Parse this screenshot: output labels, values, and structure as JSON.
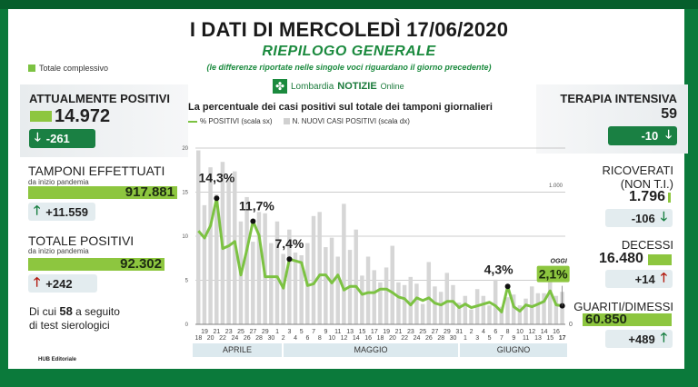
{
  "header": {
    "title": "I DATI DI MERCOLEDÌ 17/06/2020",
    "subtitle": "RIEPILOGO GENERALE",
    "note": "(le differenze riportate nelle singole voci riguardano il giorno precedente)",
    "brand": {
      "name": "Lombardia",
      "notizie": "NOTIZIE",
      "online": "Online"
    }
  },
  "legend_top": {
    "label": "Totale complessivo",
    "color": "#8dc63f"
  },
  "left": {
    "attualmente_positivi": {
      "label": "ATTUALMENTE POSITIVI",
      "value": "14.972",
      "delta": "-261",
      "delta_dir": "down"
    },
    "tamponi": {
      "label": "TAMPONI EFFETTUATI",
      "sub": "da inizio pandemia",
      "value": "917.881",
      "delta": "+11.559",
      "delta_dir": "up"
    },
    "totale_positivi": {
      "label": "TOTALE POSITIVI",
      "sub": "da inizio pandemia",
      "value": "92.302",
      "delta": "+242",
      "delta_dir": "up"
    },
    "sierologici": {
      "pre": "Di cui",
      "num": "58",
      "post": "a seguito",
      "line2": "di test sierologici"
    }
  },
  "right": {
    "terapia_intensiva": {
      "label": "TERAPIA INTENSIVA",
      "value": "59",
      "delta": "-10",
      "delta_dir": "down"
    },
    "ricoverati": {
      "label1": "RICOVERATI",
      "label2": "(NON T.I.)",
      "value": "1.796",
      "delta": "-106",
      "delta_dir": "down"
    },
    "decessi": {
      "label": "DECESSI",
      "value": "16.480",
      "delta": "+14",
      "delta_dir": "up"
    },
    "guariti": {
      "label": "GUARITI/DIMESSI",
      "value": "60.850",
      "delta": "+489",
      "delta_dir": "up"
    }
  },
  "footer": {
    "label": "HUB Editoriale"
  },
  "colors": {
    "accent_green": "#8dc63f",
    "dark_green": "#1a8043",
    "frame_green": "#0b7a3b",
    "red": "#b31b10",
    "bar_gray": "#d6d6d6"
  },
  "chart_data": {
    "type": "bar+line",
    "title": "La percentuale dei casi positivi sul totale dei tamponi giornalieri",
    "legend": [
      "% POSITIVI (scala sx)",
      "N. NUOVI CASI POSITIVI (scala dx)"
    ],
    "y_left": {
      "ticks": [
        0,
        5,
        10,
        15,
        20
      ],
      "range": [
        0,
        20
      ]
    },
    "y_right": {
      "ticks": [
        0,
        1000
      ],
      "tick_labels": [
        "0",
        "1.000"
      ]
    },
    "months": [
      "APRILE",
      "MAGGIO",
      "GIUGNO"
    ],
    "x_top_labels": [
      "19",
      "21",
      "23",
      "25",
      "27",
      "29",
      "1",
      "3",
      "5",
      "7",
      "9",
      "11",
      "13",
      "15",
      "17",
      "19",
      "21",
      "23",
      "25",
      "27",
      "29",
      "31",
      "2",
      "4",
      "6",
      "8",
      "10",
      "12",
      "14",
      "16"
    ],
    "x_bottom_labels": [
      "18",
      "20",
      "22",
      "24",
      "26",
      "28",
      "30",
      "2",
      "4",
      "6",
      "8",
      "10",
      "12",
      "14",
      "16",
      "18",
      "20",
      "22",
      "24",
      "26",
      "28",
      "30",
      "1",
      "3",
      "5",
      "7",
      "9",
      "11",
      "13",
      "15",
      "17"
    ],
    "categories": [
      "18/4",
      "19/4",
      "20/4",
      "21/4",
      "22/4",
      "23/4",
      "24/4",
      "25/4",
      "26/4",
      "27/4",
      "28/4",
      "29/4",
      "30/4",
      "1/5",
      "2/5",
      "3/5",
      "4/5",
      "5/5",
      "6/5",
      "7/5",
      "8/5",
      "9/5",
      "10/5",
      "11/5",
      "12/5",
      "13/5",
      "14/5",
      "15/5",
      "16/5",
      "17/5",
      "18/5",
      "19/5",
      "20/5",
      "21/5",
      "22/5",
      "23/5",
      "24/5",
      "25/5",
      "26/5",
      "27/5",
      "28/5",
      "29/5",
      "30/5",
      "31/5",
      "1/6",
      "2/6",
      "3/6",
      "4/6",
      "5/6",
      "6/6",
      "7/6",
      "8/6",
      "9/6",
      "10/6",
      "11/6",
      "12/6",
      "13/6",
      "14/6",
      "15/6",
      "16/6",
      "17/6"
    ],
    "series": [
      {
        "name": "% POSITIVI (scala sx)",
        "type": "line",
        "values": [
          10.6,
          9.8,
          11.2,
          14.3,
          8.6,
          8.9,
          9.4,
          5.6,
          8.5,
          11.7,
          10.1,
          5.4,
          5.4,
          5.4,
          4.1,
          7.4,
          7.2,
          7.0,
          4.4,
          4.6,
          5.6,
          5.6,
          4.7,
          5.6,
          3.9,
          4.3,
          4.3,
          3.4,
          3.6,
          3.6,
          4.0,
          4.0,
          3.6,
          3.1,
          2.9,
          2.2,
          3.0,
          2.7,
          3.0,
          2.4,
          2.2,
          2.6,
          2.6,
          1.9,
          2.3,
          1.9,
          2.1,
          2.3,
          2.5,
          2.1,
          1.4,
          4.3,
          2.0,
          1.5,
          2.2,
          2.0,
          2.3,
          2.6,
          3.8,
          2.2,
          2.1
        ],
        "annotations": [
          {
            "x": "21/4",
            "label": "14,3%"
          },
          {
            "x": "27/4",
            "label": "11,7%"
          },
          {
            "x": "3/5",
            "label": "7,4%"
          },
          {
            "x": "8/6",
            "label": "4,3%"
          },
          {
            "x": "17/6",
            "label": "2,1%",
            "tag": "OGGI"
          }
        ]
      },
      {
        "name": "N. NUOVI CASI POSITIVI (scala dx)",
        "type": "bar",
        "values": [
          1285,
          880,
          1160,
          960,
          1200,
          1080,
          1130,
          760,
          940,
          610,
          830,
          820,
          600,
          760,
          520,
          700,
          530,
          510,
          600,
          800,
          830,
          570,
          640,
          500,
          890,
          550,
          700,
          360,
          500,
          400,
          310,
          420,
          580,
          310,
          290,
          350,
          300,
          150,
          460,
          280,
          240,
          380,
          290,
          160,
          210,
          110,
          260,
          210,
          140,
          330,
          130,
          200,
          220,
          140,
          190,
          280,
          230,
          230,
          330,
          210,
          240
        ]
      }
    ],
    "grid": true
  }
}
